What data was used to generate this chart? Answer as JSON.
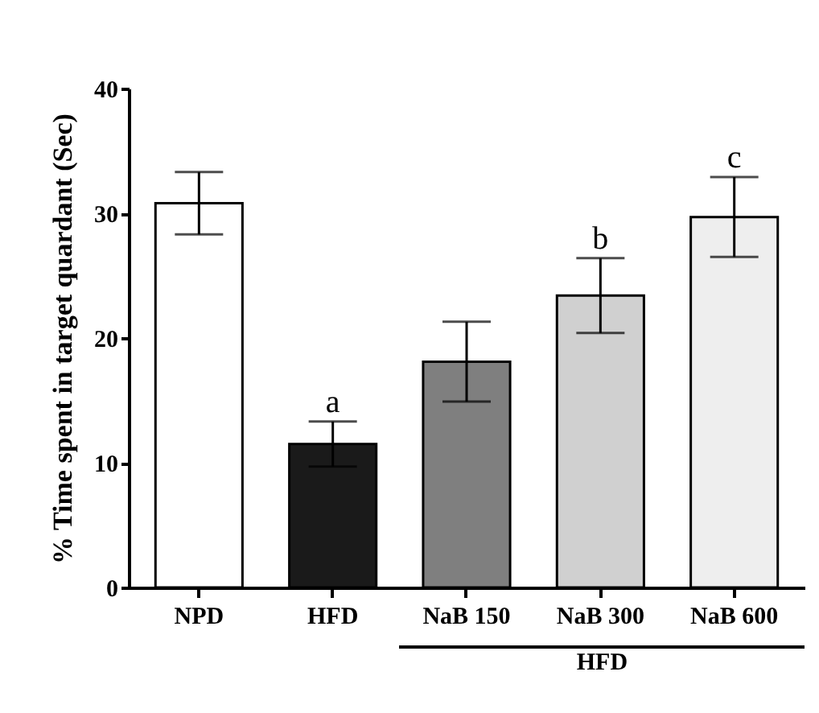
{
  "chart_data": {
    "type": "bar",
    "ylabel": "% Time spent in target quardant (Sec)",
    "categories": [
      "NPD",
      "HFD",
      "NaB 150",
      "NaB 300",
      "NaB 600"
    ],
    "values": [
      30.8,
      11.5,
      18.1,
      23.4,
      29.7
    ],
    "errors": [
      2.5,
      1.8,
      3.2,
      3.0,
      3.2
    ],
    "colors": [
      "#ffffff",
      "#1a1a1a",
      "#7f7f7f",
      "#d0d0d0",
      "#eeeeee"
    ],
    "ylim": [
      0,
      40
    ],
    "yticks": [
      0,
      10,
      20,
      30,
      40
    ],
    "annotations": [
      {
        "text": "a",
        "x": "HFD",
        "y": 13.3
      },
      {
        "text": "b",
        "x": "NaB 300",
        "y": 26.4
      },
      {
        "text": "c",
        "x": "NaB 600",
        "y": 32.9
      },
      "HFD"
    ]
  }
}
